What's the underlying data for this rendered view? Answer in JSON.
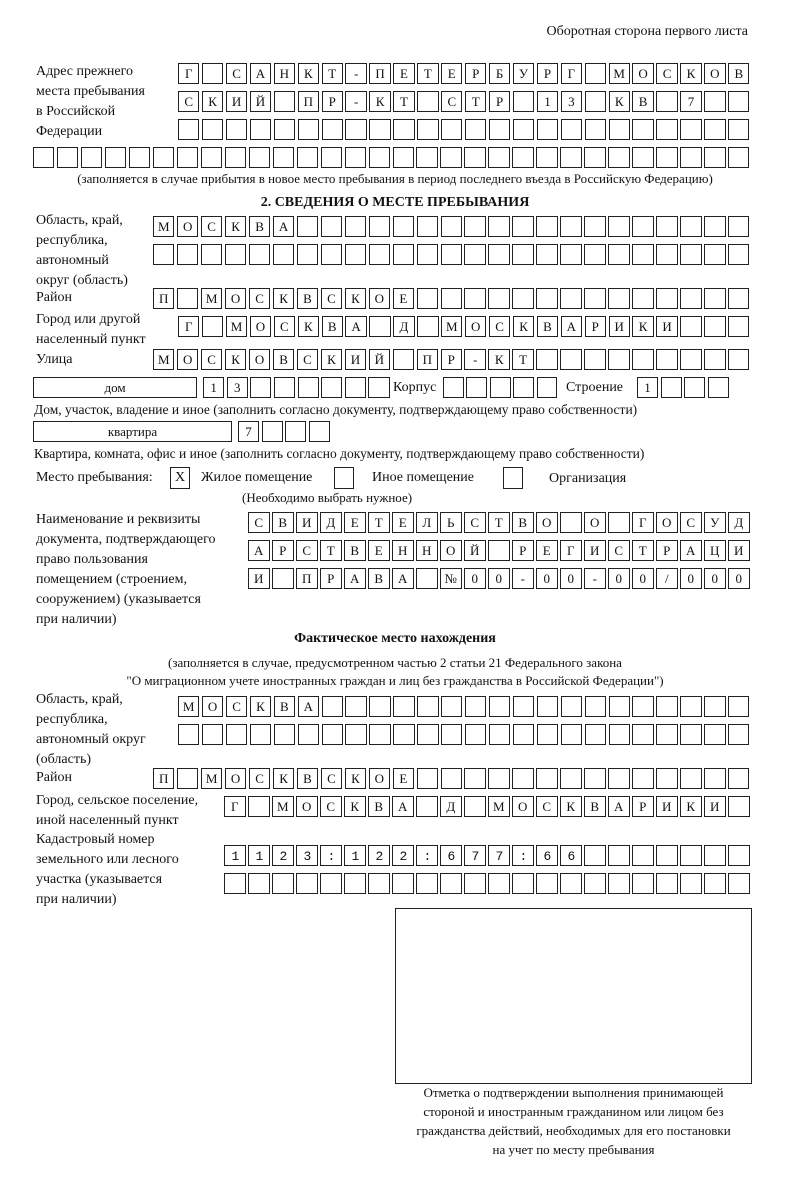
{
  "header": "Оборотная сторона первого листа",
  "prev_address": {
    "label": [
      "Адрес прежнего",
      "места пребывания",
      "в Российской",
      "Федерации"
    ],
    "rows": [
      "Г САНКТ-ПЕТЕРБУРГ МОСКОВ",
      "СКИЙ ПР-КТ СТР 13 КВ 7",
      "",
      ""
    ],
    "note": "(заполняется в случае прибытия в новое место пребывания в период последнего въезда в Российскую Федерацию)"
  },
  "section2": {
    "title": "2. СВЕДЕНИЯ О МЕСТЕ ПРЕБЫВАНИЯ",
    "region_label": [
      "Область, край,",
      "республика,",
      "автономный",
      "округ (область)"
    ],
    "region_rows": [
      "МОСКВА",
      ""
    ],
    "district_label": "Район",
    "district": "П МОСКВСКОЕ",
    "city_label": [
      "Город или другой",
      "населенный пункт"
    ],
    "city": "Г МОСКВА Д МОСКВАРИКИ",
    "street_label": "Улица",
    "street": "МОСКОВСКИЙ ПР-КТ",
    "house_type": "дом",
    "house": "13",
    "korpus_label": "Корпус",
    "korpus": "",
    "building_label": "Строение",
    "building": "1",
    "house_note": "Дом, участок, владение и иное (заполнить согласно документу, подтверждающему право собственности)",
    "flat_type": "квартира",
    "flat": "7",
    "flat_note": "Квартира, комната, офис и иное (заполнить согласно документу, подтверждающему право собственности)",
    "stay_label": "Место пребывания:",
    "stay_options": [
      {
        "label": "Жилое помещение",
        "mark": "Х"
      },
      {
        "label": "Иное помещение",
        "mark": ""
      },
      {
        "label": "Организация",
        "mark": ""
      }
    ],
    "stay_note": "(Необходимо выбрать нужное)",
    "doc_label": [
      "Наименование и реквизиты",
      "документа, подтверждающего",
      "право пользования",
      "помещением (строением,",
      "сооружением) (указывается",
      "при наличии)"
    ],
    "doc_rows": [
      "СВИДЕТЕЛЬСТВО О ГОСУД",
      "АРСТВЕННОЙ РЕГИСТРАЦИ",
      "И ПРАВА №00-00-00/000"
    ]
  },
  "actual": {
    "title": "Фактическое место нахождения",
    "note": [
      "(заполняется в случае, предусмотренном частью 2 статьи 21 Федерального закона",
      "\"О миграционном учете иностранных граждан и лиц без гражданства в Российской Федерации\")"
    ],
    "region_label": [
      "Область, край,",
      "республика,",
      "автономный округ",
      "(область)"
    ],
    "region_rows": [
      "МОСКВА",
      ""
    ],
    "district_label": "Район",
    "district": "П МОСКВСКОЕ",
    "city_label": [
      "Город, сельское поселение,",
      "иной населенный пункт"
    ],
    "city": "Г МОСКВА Д МОСКВАРИКИ",
    "cadastre_label": [
      "Кадастровый номер",
      "земельного или лесного",
      "участка (указывается",
      "при наличии)"
    ],
    "cadastre_rows": [
      "1123:122:677:66",
      ""
    ]
  },
  "stamp_caption": [
    "Отметка о подтверждении выполнения принимающей",
    "стороной и иностранным гражданином или лицом без",
    "гражданства действий, необходимых для его постановки",
    "на учет по месту пребывания"
  ]
}
